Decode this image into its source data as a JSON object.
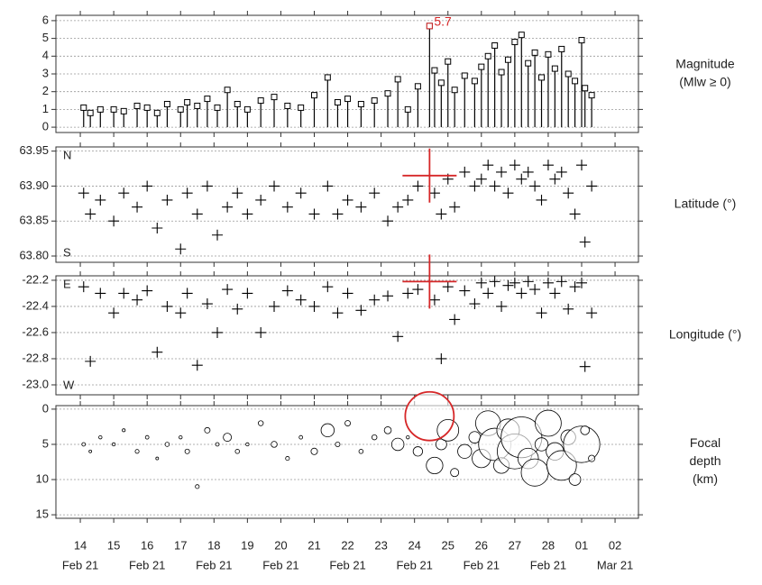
{
  "chart_data": [
    {
      "type": "stem",
      "ylabel": [
        "Magnitude",
        "(Mlw ≥ 0)"
      ],
      "color": "#000000",
      "grid": true,
      "xlim": [
        13.27,
        30.7
      ],
      "ylim": [
        -0.3,
        6.3
      ],
      "yticks": [
        0,
        1,
        2,
        3,
        4,
        5,
        6
      ],
      "annotation": {
        "text": "5.7",
        "x": 24.45,
        "y": 5.7,
        "color": "#d62728"
      },
      "x": [
        14.1,
        14.3,
        14.6,
        15.0,
        15.3,
        15.7,
        16.0,
        16.3,
        16.6,
        17.0,
        17.2,
        17.5,
        17.8,
        18.1,
        18.4,
        18.7,
        19.0,
        19.4,
        19.8,
        20.2,
        20.6,
        21.0,
        21.4,
        21.7,
        22.0,
        22.4,
        22.8,
        23.2,
        23.5,
        23.8,
        24.1,
        24.45,
        24.6,
        24.8,
        25.0,
        25.2,
        25.5,
        25.8,
        26.0,
        26.2,
        26.4,
        26.6,
        26.8,
        27.0,
        27.2,
        27.4,
        27.6,
        27.8,
        28.0,
        28.2,
        28.4,
        28.6,
        28.8,
        29.0,
        29.1,
        29.3
      ],
      "values": [
        1.1,
        0.8,
        1.0,
        1.0,
        0.9,
        1.2,
        1.1,
        0.8,
        1.3,
        1.0,
        1.4,
        1.2,
        1.6,
        1.1,
        2.1,
        1.3,
        1.0,
        1.5,
        1.7,
        1.2,
        1.1,
        1.8,
        2.8,
        1.4,
        1.6,
        1.3,
        1.5,
        1.9,
        2.7,
        1.0,
        2.3,
        5.7,
        3.2,
        2.5,
        3.7,
        2.1,
        2.9,
        2.6,
        3.4,
        4.0,
        4.6,
        3.1,
        3.8,
        4.8,
        5.2,
        3.6,
        4.2,
        2.8,
        4.1,
        3.3,
        4.4,
        3.0,
        2.6,
        4.9,
        2.2,
        1.8
      ]
    },
    {
      "type": "plus",
      "ylabel": [
        "Latitude (°)"
      ],
      "color": "#000000",
      "grid": true,
      "top_note": "N",
      "bottom_note": "S",
      "xlim": [
        13.27,
        30.7
      ],
      "ylim": [
        63.791,
        63.956
      ],
      "yticks": [
        {
          "value": 63.8,
          "label": "63.80"
        },
        63.85,
        {
          "value": 63.9,
          "label": "63.90"
        },
        63.95
      ],
      "highlight": {
        "x": 24.45,
        "y": 63.915,
        "color": "#d62728"
      },
      "x": [
        14.1,
        14.3,
        14.6,
        15.0,
        15.3,
        15.7,
        16.0,
        16.3,
        16.6,
        17.0,
        17.2,
        17.5,
        17.8,
        18.1,
        18.4,
        18.7,
        19.0,
        19.4,
        19.8,
        20.2,
        20.6,
        21.0,
        21.4,
        21.7,
        22.0,
        22.4,
        22.8,
        23.2,
        23.5,
        23.8,
        24.1,
        24.45,
        24.6,
        24.8,
        25.0,
        25.2,
        25.5,
        25.8,
        26.0,
        26.2,
        26.4,
        26.6,
        26.8,
        27.0,
        27.2,
        27.4,
        27.6,
        27.8,
        28.0,
        28.2,
        28.4,
        28.6,
        28.8,
        29.0,
        29.1,
        29.3
      ],
      "values": [
        63.89,
        63.86,
        63.88,
        63.85,
        63.89,
        63.87,
        63.9,
        63.84,
        63.88,
        63.81,
        63.89,
        63.86,
        63.9,
        63.83,
        63.87,
        63.89,
        63.86,
        63.88,
        63.9,
        63.87,
        63.89,
        63.86,
        63.9,
        63.86,
        63.88,
        63.87,
        63.89,
        63.85,
        63.87,
        63.88,
        63.9,
        63.915,
        63.89,
        63.86,
        63.91,
        63.87,
        63.92,
        63.9,
        63.91,
        63.93,
        63.9,
        63.92,
        63.89,
        63.93,
        63.91,
        63.92,
        63.9,
        63.88,
        63.93,
        63.91,
        63.92,
        63.89,
        63.86,
        63.93,
        63.82,
        63.9
      ]
    },
    {
      "type": "plus",
      "ylabel": [
        "Longitude (°)"
      ],
      "color": "#000000",
      "grid": true,
      "top_note": "E",
      "bottom_note": "W",
      "xlim": [
        13.27,
        30.7
      ],
      "ylim": [
        -23.076,
        -22.166
      ],
      "yticks": [
        -22.2,
        -22.4,
        -22.6,
        -22.8,
        {
          "value": -23,
          "label": "-23.0"
        }
      ],
      "highlight": {
        "x": 24.45,
        "y": -22.21,
        "color": "#d62728"
      },
      "x": [
        14.1,
        14.3,
        14.6,
        15.0,
        15.3,
        15.7,
        16.0,
        16.3,
        16.6,
        17.0,
        17.2,
        17.5,
        17.8,
        18.1,
        18.4,
        18.7,
        19.0,
        19.4,
        19.8,
        20.2,
        20.6,
        21.0,
        21.4,
        21.7,
        22.0,
        22.4,
        22.8,
        23.2,
        23.5,
        23.8,
        24.1,
        24.45,
        24.6,
        24.8,
        25.0,
        25.2,
        25.5,
        25.8,
        26.0,
        26.2,
        26.4,
        26.6,
        26.8,
        27.0,
        27.2,
        27.4,
        27.6,
        27.8,
        28.0,
        28.2,
        28.4,
        28.6,
        28.8,
        29.0,
        29.1,
        29.3
      ],
      "values": [
        -22.25,
        -22.82,
        -22.3,
        -22.45,
        -22.3,
        -22.35,
        -22.28,
        -22.75,
        -22.4,
        -22.45,
        -22.3,
        -22.85,
        -22.38,
        -22.6,
        -22.27,
        -22.42,
        -22.3,
        -22.6,
        -22.4,
        -22.28,
        -22.35,
        -22.4,
        -22.25,
        -22.45,
        -22.3,
        -22.43,
        -22.35,
        -22.32,
        -22.63,
        -22.3,
        -22.27,
        -22.21,
        -22.35,
        -22.8,
        -22.25,
        -22.5,
        -22.28,
        -22.38,
        -22.22,
        -22.3,
        -22.21,
        -22.4,
        -22.24,
        -22.22,
        -22.3,
        -22.21,
        -22.27,
        -22.45,
        -22.22,
        -22.3,
        -22.21,
        -22.42,
        -22.25,
        -22.22,
        -22.86,
        -22.45
      ]
    },
    {
      "type": "bubble",
      "ylabel": [
        "Focal",
        "depth",
        "(km)"
      ],
      "color": "#000000",
      "grid": true,
      "invert_y": true,
      "xlim": [
        13.27,
        30.7
      ],
      "ylim": [
        -0.5,
        15.5
      ],
      "yticks": [
        0,
        5,
        10,
        15
      ],
      "xticks": [
        14,
        15,
        16,
        17,
        18,
        19,
        20,
        21,
        22,
        23,
        24,
        25,
        26,
        27,
        28,
        {
          "value": 29,
          "label": "01"
        },
        {
          "value": 30,
          "label": "02"
        }
      ],
      "x_month_labels": [
        {
          "value": 14,
          "label": "Feb 21"
        },
        {
          "value": 16,
          "label": "Feb 21"
        },
        {
          "value": 18,
          "label": "Feb 21"
        },
        {
          "value": 20,
          "label": "Feb 21"
        },
        {
          "value": 22,
          "label": "Feb 21"
        },
        {
          "value": 24,
          "label": "Feb 21"
        },
        {
          "value": 26,
          "label": "Feb 21"
        },
        {
          "value": 28,
          "label": "Feb 21"
        },
        {
          "value": 30,
          "label": "Mar 21"
        }
      ],
      "highlight": {
        "x": 24.45,
        "y": 1,
        "size": 5.7,
        "color": "#d62728"
      },
      "x": [
        14.1,
        14.3,
        14.6,
        15.0,
        15.3,
        15.7,
        16.0,
        16.3,
        16.6,
        17.0,
        17.2,
        17.5,
        17.8,
        18.1,
        18.4,
        18.7,
        19.0,
        19.4,
        19.8,
        20.2,
        20.6,
        21.0,
        21.4,
        21.7,
        22.0,
        22.4,
        22.8,
        23.2,
        23.5,
        23.8,
        24.1,
        24.45,
        24.6,
        24.8,
        25.0,
        25.2,
        25.5,
        25.8,
        26.0,
        26.2,
        26.4,
        26.6,
        26.8,
        27.0,
        27.2,
        27.4,
        27.6,
        27.8,
        28.0,
        28.2,
        28.4,
        28.6,
        28.8,
        29.0,
        29.1,
        29.3
      ],
      "values": [
        5,
        6,
        4,
        5,
        3,
        6,
        4,
        7,
        5,
        4,
        6,
        11,
        3,
        5,
        4,
        6,
        5,
        2,
        5,
        7,
        4,
        6,
        3,
        5,
        2,
        6,
        4,
        3,
        5,
        4,
        6,
        1,
        8,
        5,
        3,
        9,
        6,
        4,
        7,
        2,
        5,
        8,
        3,
        6,
        4,
        7,
        9,
        5,
        2,
        6,
        8,
        4,
        10,
        5,
        3,
        7
      ],
      "sizes": [
        1.1,
        0.8,
        1.0,
        1.0,
        0.9,
        1.2,
        1.1,
        0.8,
        1.3,
        1.0,
        1.4,
        1.2,
        1.6,
        1.1,
        2.1,
        1.3,
        1.0,
        1.5,
        1.7,
        1.2,
        1.1,
        1.8,
        2.8,
        1.4,
        1.6,
        1.3,
        1.5,
        1.9,
        2.7,
        1.0,
        2.3,
        5.7,
        3.2,
        2.5,
        3.7,
        2.1,
        2.9,
        2.6,
        3.4,
        4.0,
        4.6,
        3.1,
        3.8,
        4.8,
        5.2,
        3.6,
        4.2,
        2.8,
        4.1,
        3.3,
        4.4,
        3.0,
        2.6,
        4.9,
        2.2,
        1.8
      ]
    }
  ]
}
